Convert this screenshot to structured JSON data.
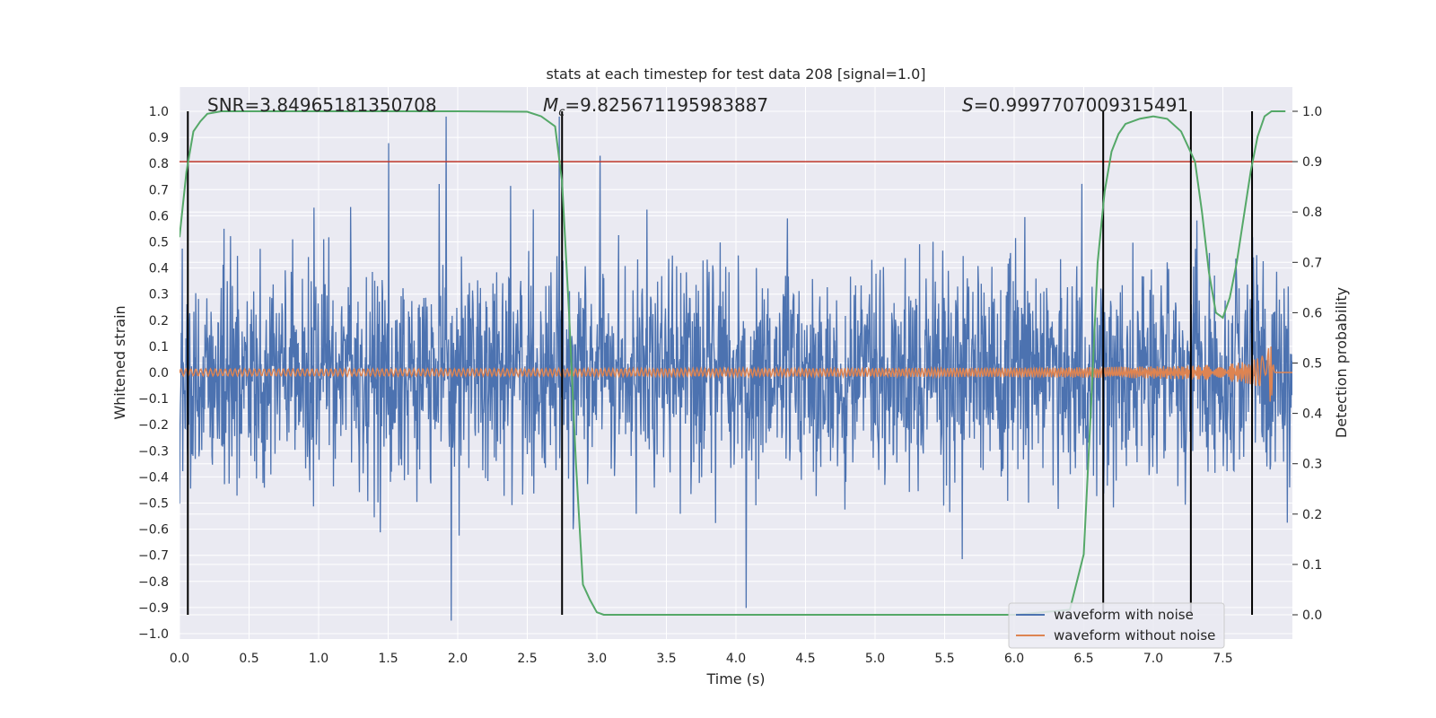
{
  "chart_data": {
    "type": "line",
    "title": "stats at each timestep for test data 208 [signal=1.0]",
    "xlabel": "Time (s)",
    "ylabel": "Whitened strain",
    "y2label": "Detection probability",
    "xlim": [
      0.0,
      8.0
    ],
    "ylim": [
      -1.0,
      1.0
    ],
    "y2lim": [
      0.0,
      1.0
    ],
    "xticks": [
      0.0,
      0.5,
      1.0,
      1.5,
      2.0,
      2.5,
      3.0,
      3.5,
      4.0,
      4.5,
      5.0,
      5.5,
      6.0,
      6.5,
      7.0,
      7.5
    ],
    "xtick_labels": [
      "0.0",
      "0.5",
      "1.0",
      "1.5",
      "2.0",
      "2.5",
      "3.0",
      "3.5",
      "4.0",
      "4.5",
      "5.0",
      "5.5",
      "6.0",
      "6.5",
      "7.0",
      "7.5"
    ],
    "yticks": [
      1.0,
      0.9,
      0.8,
      0.7,
      0.6,
      0.5,
      0.4,
      0.3,
      0.2,
      0.1,
      0.0,
      -0.1,
      -0.2,
      -0.3,
      -0.4,
      -0.5,
      -0.6,
      -0.7,
      -0.8,
      -0.9,
      -1.0
    ],
    "ytick_labels": [
      "1.0",
      "0.9",
      "0.8",
      "0.7",
      "0.6",
      "0.5",
      "0.4",
      "0.3",
      "0.2",
      "0.1",
      "0.0",
      "−0.1",
      "−0.2",
      "−0.3",
      "−0.4",
      "−0.5",
      "−0.6",
      "−0.7",
      "−0.8",
      "−0.9",
      "−1.0"
    ],
    "y2ticks": [
      1.0,
      0.9,
      0.8,
      0.7,
      0.6,
      0.5,
      0.4,
      0.3,
      0.2,
      0.1,
      0.0
    ],
    "y2tick_labels": [
      "1.0",
      "0.9",
      "0.8",
      "0.7",
      "0.6",
      "0.5",
      "0.4",
      "0.3",
      "0.2",
      "0.1",
      "0.0"
    ],
    "annotations": {
      "snr": "SNR=3.84965181350708",
      "mc_symbol": "M",
      "mc_sub": "c",
      "mc_value": "=9.825671195983887",
      "s_symbol": "S",
      "s_value": "=0.9997707009315491"
    },
    "threshold_line": {
      "y2": 0.9,
      "color": "#c0392b"
    },
    "vertical_lines_time": [
      0.06,
      2.75,
      6.64,
      7.27,
      7.71
    ],
    "series": [
      {
        "name": "waveform with noise",
        "color": "#4c72b0",
        "axis": "left",
        "description_values": {
          "noise_std": 0.2,
          "typical_min": -0.55,
          "typical_max": 0.6
        }
      },
      {
        "name": "waveform without noise",
        "color": "#dd8452",
        "axis": "left",
        "chirp": {
          "start_amplitude": 0.01,
          "peak_amplitude": 0.14,
          "merger_time": 7.85,
          "end_time": 7.87
        }
      },
      {
        "name": "detection probability",
        "color": "#55a868",
        "axis": "right",
        "x": [
          0.0,
          0.05,
          0.1,
          0.15,
          0.2,
          0.3,
          0.4,
          0.5,
          1.0,
          2.0,
          2.5,
          2.6,
          2.7,
          2.75,
          2.8,
          2.85,
          2.9,
          2.95,
          3.0,
          3.05,
          3.1,
          3.5,
          4.0,
          5.0,
          6.0,
          6.4,
          6.5,
          6.55,
          6.6,
          6.65,
          6.7,
          6.75,
          6.8,
          6.9,
          7.0,
          7.1,
          7.2,
          7.3,
          7.35,
          7.4,
          7.45,
          7.5,
          7.55,
          7.6,
          7.65,
          7.7,
          7.75,
          7.8,
          7.85,
          7.9,
          7.95
        ],
        "y": [
          0.75,
          0.88,
          0.96,
          0.98,
          0.995,
          1.0,
          1.0,
          1.0,
          1.0,
          1.0,
          0.999,
          0.99,
          0.97,
          0.86,
          0.6,
          0.3,
          0.06,
          0.03,
          0.005,
          0.0,
          0.0,
          0.0,
          0.0,
          0.0,
          0.0,
          0.01,
          0.12,
          0.4,
          0.7,
          0.84,
          0.92,
          0.955,
          0.975,
          0.985,
          0.99,
          0.985,
          0.96,
          0.9,
          0.8,
          0.68,
          0.6,
          0.59,
          0.63,
          0.7,
          0.79,
          0.88,
          0.95,
          0.99,
          1.0,
          1.0,
          1.0
        ]
      }
    ],
    "legend": {
      "placement": "lower-right",
      "entries": [
        "waveform with noise",
        "waveform without noise"
      ]
    },
    "grid": true
  }
}
